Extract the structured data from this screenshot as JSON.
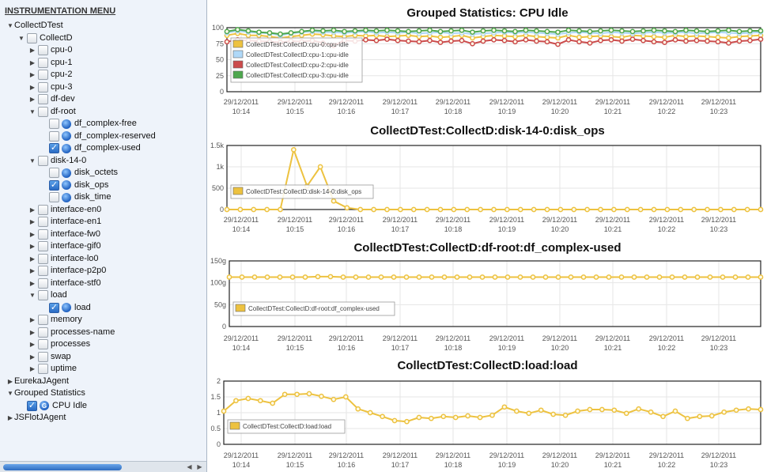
{
  "sidebar": {
    "title": "INSTRUMENTATION MENU",
    "tree": [
      {
        "label": "CollectDTest",
        "level": 0,
        "twisty": "open",
        "checkbox": false
      },
      {
        "label": "CollectD",
        "level": 1,
        "twisty": "open",
        "checkbox": "unchecked"
      },
      {
        "label": "cpu-0",
        "level": 2,
        "twisty": "closed",
        "checkbox": "unchecked"
      },
      {
        "label": "cpu-1",
        "level": 2,
        "twisty": "closed",
        "checkbox": "unchecked"
      },
      {
        "label": "cpu-2",
        "level": 2,
        "twisty": "closed",
        "checkbox": "unchecked"
      },
      {
        "label": "cpu-3",
        "level": 2,
        "twisty": "closed",
        "checkbox": "unchecked"
      },
      {
        "label": "df-dev",
        "level": 2,
        "twisty": "closed",
        "checkbox": "unchecked"
      },
      {
        "label": "df-root",
        "level": 2,
        "twisty": "open",
        "checkbox": "unchecked"
      },
      {
        "label": "df_complex-free",
        "level": 3,
        "twisty": "none",
        "checkbox": "unchecked",
        "icon": "metric-icon"
      },
      {
        "label": "df_complex-reserved",
        "level": 3,
        "twisty": "none",
        "checkbox": "unchecked",
        "icon": "metric-icon"
      },
      {
        "label": "df_complex-used",
        "level": 3,
        "twisty": "none",
        "checkbox": "checked",
        "icon": "metric-icon"
      },
      {
        "label": "disk-14-0",
        "level": 2,
        "twisty": "open",
        "checkbox": "unchecked"
      },
      {
        "label": "disk_octets",
        "level": 3,
        "twisty": "none",
        "checkbox": "unchecked",
        "icon": "metric-icon"
      },
      {
        "label": "disk_ops",
        "level": 3,
        "twisty": "none",
        "checkbox": "checked",
        "icon": "metric-icon"
      },
      {
        "label": "disk_time",
        "level": 3,
        "twisty": "none",
        "checkbox": "unchecked",
        "icon": "metric-icon"
      },
      {
        "label": "interface-en0",
        "level": 2,
        "twisty": "closed",
        "checkbox": "unchecked"
      },
      {
        "label": "interface-en1",
        "level": 2,
        "twisty": "closed",
        "checkbox": "unchecked"
      },
      {
        "label": "interface-fw0",
        "level": 2,
        "twisty": "closed",
        "checkbox": "unchecked"
      },
      {
        "label": "interface-gif0",
        "level": 2,
        "twisty": "closed",
        "checkbox": "unchecked"
      },
      {
        "label": "interface-lo0",
        "level": 2,
        "twisty": "closed",
        "checkbox": "unchecked"
      },
      {
        "label": "interface-p2p0",
        "level": 2,
        "twisty": "closed",
        "checkbox": "unchecked"
      },
      {
        "label": "interface-stf0",
        "level": 2,
        "twisty": "closed",
        "checkbox": "unchecked"
      },
      {
        "label": "load",
        "level": 2,
        "twisty": "open",
        "checkbox": "unchecked"
      },
      {
        "label": "load",
        "level": 3,
        "twisty": "none",
        "checkbox": "checked",
        "icon": "metric-icon"
      },
      {
        "label": "memory",
        "level": 2,
        "twisty": "closed",
        "checkbox": "unchecked"
      },
      {
        "label": "processes-name",
        "level": 2,
        "twisty": "closed",
        "checkbox": "unchecked"
      },
      {
        "label": "processes",
        "level": 2,
        "twisty": "closed",
        "checkbox": "unchecked"
      },
      {
        "label": "swap",
        "level": 2,
        "twisty": "closed",
        "checkbox": "unchecked"
      },
      {
        "label": "uptime",
        "level": 2,
        "twisty": "closed",
        "checkbox": "unchecked"
      },
      {
        "label": "EurekaJAgent",
        "level": 0,
        "twisty": "closed",
        "checkbox": false
      },
      {
        "label": "Grouped Statistics",
        "level": 0,
        "twisty": "open",
        "checkbox": false
      },
      {
        "label": "CPU Idle",
        "level": 1,
        "twisty": "none",
        "checkbox": "checked",
        "icon": "group-icon",
        "icon_letter": "G"
      },
      {
        "label": "JSFlotJAgent",
        "level": 0,
        "twisty": "closed",
        "checkbox": false
      }
    ]
  },
  "x_tick_labels": [
    [
      "29/12/2011",
      "10:14"
    ],
    [
      "29/12/2011",
      "10:15"
    ],
    [
      "29/12/2011",
      "10:16"
    ],
    [
      "29/12/2011",
      "10:17"
    ],
    [
      "29/12/2011",
      "10:18"
    ],
    [
      "29/12/2011",
      "10:19"
    ],
    [
      "29/12/2011",
      "10:20"
    ],
    [
      "29/12/2011",
      "10:21"
    ],
    [
      "29/12/2011",
      "10:22"
    ],
    [
      "29/12/2011",
      "10:23"
    ]
  ],
  "chart_data": [
    {
      "type": "line",
      "title": "Grouped Statistics: CPU Idle",
      "y_ticks": [
        "0",
        "25",
        "50",
        "75",
        "100"
      ],
      "ylim": [
        0,
        100
      ],
      "legend_position": "bottom-left",
      "series": [
        {
          "name": "CollectDTest:CollectD:cpu-0:cpu-idle",
          "color": "#edc240",
          "values": [
            88,
            91,
            88,
            88,
            86,
            84,
            86,
            88,
            90,
            89,
            87,
            86,
            88,
            87,
            88,
            86,
            87,
            88,
            86,
            87,
            85,
            86,
            88,
            84,
            86,
            88,
            87,
            86,
            88,
            86,
            85,
            84,
            88,
            85,
            86,
            87,
            86,
            85,
            88,
            87,
            86,
            85,
            88,
            86,
            87,
            86,
            85,
            84,
            86,
            87,
            88
          ]
        },
        {
          "name": "CollectDTest:CollectD:cpu-1:cpu-idle",
          "color": "#afd8f8",
          "values": [
            92,
            95,
            93,
            92,
            91,
            88,
            91,
            93,
            94,
            93,
            93,
            92,
            93,
            94,
            92,
            93,
            92,
            93,
            91,
            92,
            93,
            91,
            92,
            90,
            91,
            92,
            93,
            92,
            93,
            92,
            91,
            90,
            92,
            93,
            92,
            91,
            93,
            92,
            91,
            92,
            93,
            92,
            92,
            93,
            91,
            92,
            93,
            92,
            91,
            92,
            93
          ]
        },
        {
          "name": "CollectDTest:CollectD:cpu-2:cpu-idle",
          "color": "#cb4b4b",
          "values": [
            78,
            81,
            80,
            79,
            78,
            77,
            79,
            78,
            80,
            76,
            72,
            80,
            79,
            81,
            80,
            82,
            80,
            79,
            78,
            80,
            77,
            79,
            80,
            75,
            79,
            81,
            80,
            78,
            81,
            79,
            78,
            74,
            81,
            78,
            76,
            80,
            81,
            79,
            82,
            80,
            78,
            77,
            81,
            79,
            80,
            79,
            78,
            76,
            79,
            80,
            82
          ]
        },
        {
          "name": "CollectDTest:CollectD:cpu-3:cpu-idle",
          "color": "#4da74d",
          "values": [
            94,
            97,
            95,
            93,
            92,
            90,
            92,
            94,
            96,
            95,
            96,
            94,
            95,
            96,
            95,
            96,
            95,
            94,
            95,
            96,
            94,
            95,
            96,
            93,
            95,
            96,
            95,
            94,
            96,
            95,
            94,
            93,
            96,
            95,
            94,
            95,
            96,
            95,
            94,
            95,
            96,
            95,
            94,
            96,
            95,
            94,
            95,
            96,
            94,
            95,
            95
          ]
        }
      ]
    },
    {
      "type": "line",
      "title": "CollectDTest:CollectD:disk-14-0:disk_ops",
      "y_ticks": [
        "0",
        "500",
        "1k",
        "1.5k"
      ],
      "ylim": [
        0,
        1500
      ],
      "legend_position": "bottom-left",
      "series": [
        {
          "name": "CollectDTest:CollectD:disk-14-0:disk_ops",
          "color": "#edc240",
          "values": [
            0,
            0,
            0,
            0,
            0,
            1400,
            550,
            1000,
            200,
            40,
            0,
            0,
            0,
            0,
            0,
            0,
            0,
            0,
            0,
            0,
            0,
            0,
            0,
            0,
            0,
            0,
            0,
            0,
            0,
            0,
            0,
            0,
            0,
            0,
            0,
            0,
            0,
            0,
            0,
            0,
            0
          ]
        }
      ]
    },
    {
      "type": "line",
      "title": "CollectDTest:CollectD:df-root:df_complex-used",
      "y_ticks": [
        "0",
        "50g",
        "100g",
        "150g"
      ],
      "ylim": [
        0,
        150
      ],
      "legend_position": "bottom-left",
      "series": [
        {
          "name": "CollectDTest:CollectD:df-root:df_complex-used",
          "color": "#edc240",
          "values": [
            113,
            113,
            113,
            113,
            113,
            113,
            113,
            114,
            114,
            113,
            113,
            113,
            113,
            113,
            113,
            113,
            113,
            113,
            113,
            113,
            113,
            113,
            113,
            113,
            113,
            113,
            113,
            113,
            113,
            113,
            113,
            113,
            113,
            113,
            113,
            113,
            113,
            113,
            113,
            113,
            113,
            113,
            113
          ]
        }
      ]
    },
    {
      "type": "line",
      "title": "CollectDTest:CollectD:load:load",
      "y_ticks": [
        "0",
        "0.5",
        "1",
        "1.5",
        "2"
      ],
      "ylim": [
        0,
        2
      ],
      "legend_position": "bottom-left",
      "series": [
        {
          "name": "CollectDTest:CollectD:load:load",
          "color": "#edc240",
          "values": [
            1.05,
            1.38,
            1.45,
            1.38,
            1.3,
            1.58,
            1.58,
            1.6,
            1.52,
            1.42,
            1.5,
            1.12,
            1.0,
            0.88,
            0.75,
            0.72,
            0.85,
            0.82,
            0.88,
            0.85,
            0.9,
            0.85,
            0.92,
            1.18,
            1.05,
            0.98,
            1.08,
            0.95,
            0.92,
            1.05,
            1.1,
            1.1,
            1.08,
            0.98,
            1.12,
            1.02,
            0.88,
            1.05,
            0.82,
            0.88,
            0.9,
            1.02,
            1.08,
            1.12,
            1.1
          ]
        }
      ]
    }
  ]
}
